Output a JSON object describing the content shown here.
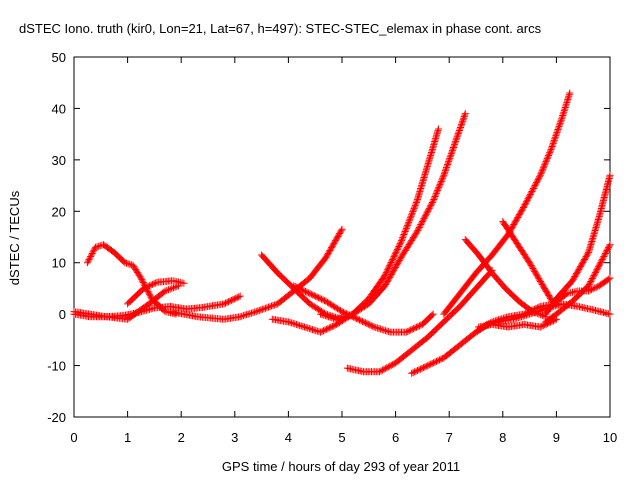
{
  "chart_data": {
    "type": "scatter",
    "title": "dSTEC Iono. truth (kir0, Lon=21, Lat=67, h=497): STEC-STEC_elemax in phase cont. arcs",
    "xlabel": "GPS time / hours of day 293 of year 2011",
    "ylabel": "dSTEC  / TECUs",
    "xlim": [
      0,
      10
    ],
    "ylim": [
      -20,
      50
    ],
    "x_ticks": [
      0,
      1,
      2,
      3,
      4,
      5,
      6,
      7,
      8,
      9,
      10
    ],
    "y_ticks": [
      -20,
      -10,
      0,
      10,
      20,
      30,
      40,
      50
    ],
    "grid": false,
    "legend": "none",
    "marker": "+",
    "color": "#ff0000",
    "series": [
      {
        "x": [
          0.0,
          0.3,
          0.6,
          0.9,
          1.2,
          1.5,
          1.8,
          2.1,
          2.4,
          2.8,
          3.1
        ],
        "y": [
          0,
          -0.5,
          -0.5,
          -0.3,
          0.3,
          1.2,
          1.5,
          1.0,
          1.3,
          2.0,
          3.5
        ]
      },
      {
        "x": [
          0.25,
          0.4,
          0.55,
          0.75,
          0.95,
          1.1,
          1.25,
          1.45,
          1.7,
          1.9
        ],
        "y": [
          10,
          13,
          13.5,
          12,
          10,
          9.5,
          7,
          3,
          0.5,
          0
        ]
      },
      {
        "x": [
          0.0,
          0.3,
          0.6,
          1.0,
          1.4,
          1.7,
          1.95
        ],
        "y": [
          0.5,
          0,
          -0.5,
          -1.0,
          2.0,
          4.5,
          5.5
        ]
      },
      {
        "x": [
          1.0,
          1.3,
          1.55,
          1.85,
          2.05
        ],
        "y": [
          2.0,
          5.0,
          6.2,
          6.5,
          6.0
        ]
      },
      {
        "x": [
          1.8,
          2.3,
          2.8,
          3.1,
          3.4,
          3.8,
          4.1,
          4.4,
          4.7,
          5.0
        ],
        "y": [
          0.5,
          -0.5,
          -1.0,
          -0.5,
          0.5,
          2.0,
          4.5,
          7.0,
          11.0,
          16.5
        ]
      },
      {
        "x": [
          3.5,
          3.8,
          4.1,
          4.4,
          4.7,
          5.0
        ],
        "y": [
          11.5,
          8.0,
          5.0,
          2.0,
          0,
          -1.0
        ]
      },
      {
        "x": [
          3.7,
          4.0,
          4.3,
          4.6,
          4.9,
          5.2,
          5.5,
          5.8,
          6.1,
          6.4,
          6.6,
          6.8
        ],
        "y": [
          -1.0,
          -1.5,
          -2.5,
          -3.5,
          -2.0,
          0,
          3.0,
          7.5,
          14.0,
          22.0,
          29.0,
          36.0
        ]
      },
      {
        "x": [
          4.6,
          4.9,
          5.2,
          5.5,
          5.8,
          6.1,
          6.4,
          6.7,
          6.9,
          7.1,
          7.3
        ],
        "y": [
          0,
          -1.0,
          0,
          2.0,
          5.5,
          11.0,
          16.0,
          22.0,
          27.0,
          33.0,
          39.0
        ]
      },
      {
        "x": [
          4.1,
          4.4,
          4.7,
          5.0,
          5.3,
          5.6,
          5.9,
          6.2,
          6.5,
          6.7
        ],
        "y": [
          5.5,
          4.0,
          2.5,
          0.5,
          -1.0,
          -2.5,
          -3.5,
          -3.5,
          -2.0,
          0
        ]
      },
      {
        "x": [
          5.1,
          5.4,
          5.7,
          6.0,
          6.3,
          6.6,
          6.9,
          7.2,
          7.5,
          7.8
        ],
        "y": [
          -10.5,
          -11.2,
          -11.2,
          -9.5,
          -7.0,
          -4.5,
          -1.5,
          1.5,
          5.0,
          8.5
        ]
      },
      {
        "x": [
          6.9,
          7.2,
          7.5,
          7.8,
          8.1,
          8.4,
          8.7,
          8.9,
          9.1,
          9.25
        ],
        "y": [
          0,
          4.0,
          8.0,
          11.5,
          15.5,
          21.0,
          27.0,
          32.0,
          38.0,
          43.0
        ]
      },
      {
        "x": [
          6.3,
          6.6,
          6.9,
          7.2,
          7.5,
          7.8,
          8.1,
          8.4,
          8.7,
          9.0
        ],
        "y": [
          -11.5,
          -10.0,
          -8.5,
          -6.0,
          -3.5,
          -1.5,
          -0.5,
          0,
          1.5,
          2.0
        ]
      },
      {
        "x": [
          7.55,
          7.8,
          8.1,
          8.4,
          8.7,
          9.0
        ],
        "y": [
          -2.5,
          -2.0,
          -2.5,
          -2.0,
          -2.5,
          -1.0
        ]
      },
      {
        "x": [
          7.5,
          7.7,
          7.9,
          8.2,
          8.5,
          8.8,
          9.1,
          9.4,
          9.7,
          10.0
        ],
        "y": [
          -3.5,
          -2.0,
          -1.5,
          -1.0,
          0,
          1.0,
          2.0,
          1.5,
          0.8,
          0
        ]
      },
      {
        "x": [
          7.3,
          7.55,
          7.8,
          8.05,
          8.3,
          8.55,
          8.8
        ],
        "y": [
          14.5,
          11.5,
          8.0,
          5.0,
          2.5,
          0.5,
          -0.5
        ]
      },
      {
        "x": [
          8.0,
          8.25,
          8.5,
          8.75,
          8.95
        ],
        "y": [
          18.0,
          14.0,
          10.0,
          5.5,
          2.0
        ]
      },
      {
        "x": [
          8.8,
          9.0,
          9.3,
          9.6,
          9.8,
          10.0
        ],
        "y": [
          0,
          3.0,
          6.5,
          12.0,
          19.0,
          27.0
        ]
      },
      {
        "x": [
          8.8,
          9.0,
          9.3,
          9.6,
          9.8,
          10.0
        ],
        "y": [
          -1.5,
          0,
          2.5,
          5.5,
          9.5,
          13.5
        ]
      },
      {
        "x": [
          9.0,
          9.2,
          9.4,
          9.6,
          9.8,
          10.0
        ],
        "y": [
          2.5,
          4.0,
          4.5,
          4.5,
          5.5,
          7.0
        ]
      }
    ]
  }
}
